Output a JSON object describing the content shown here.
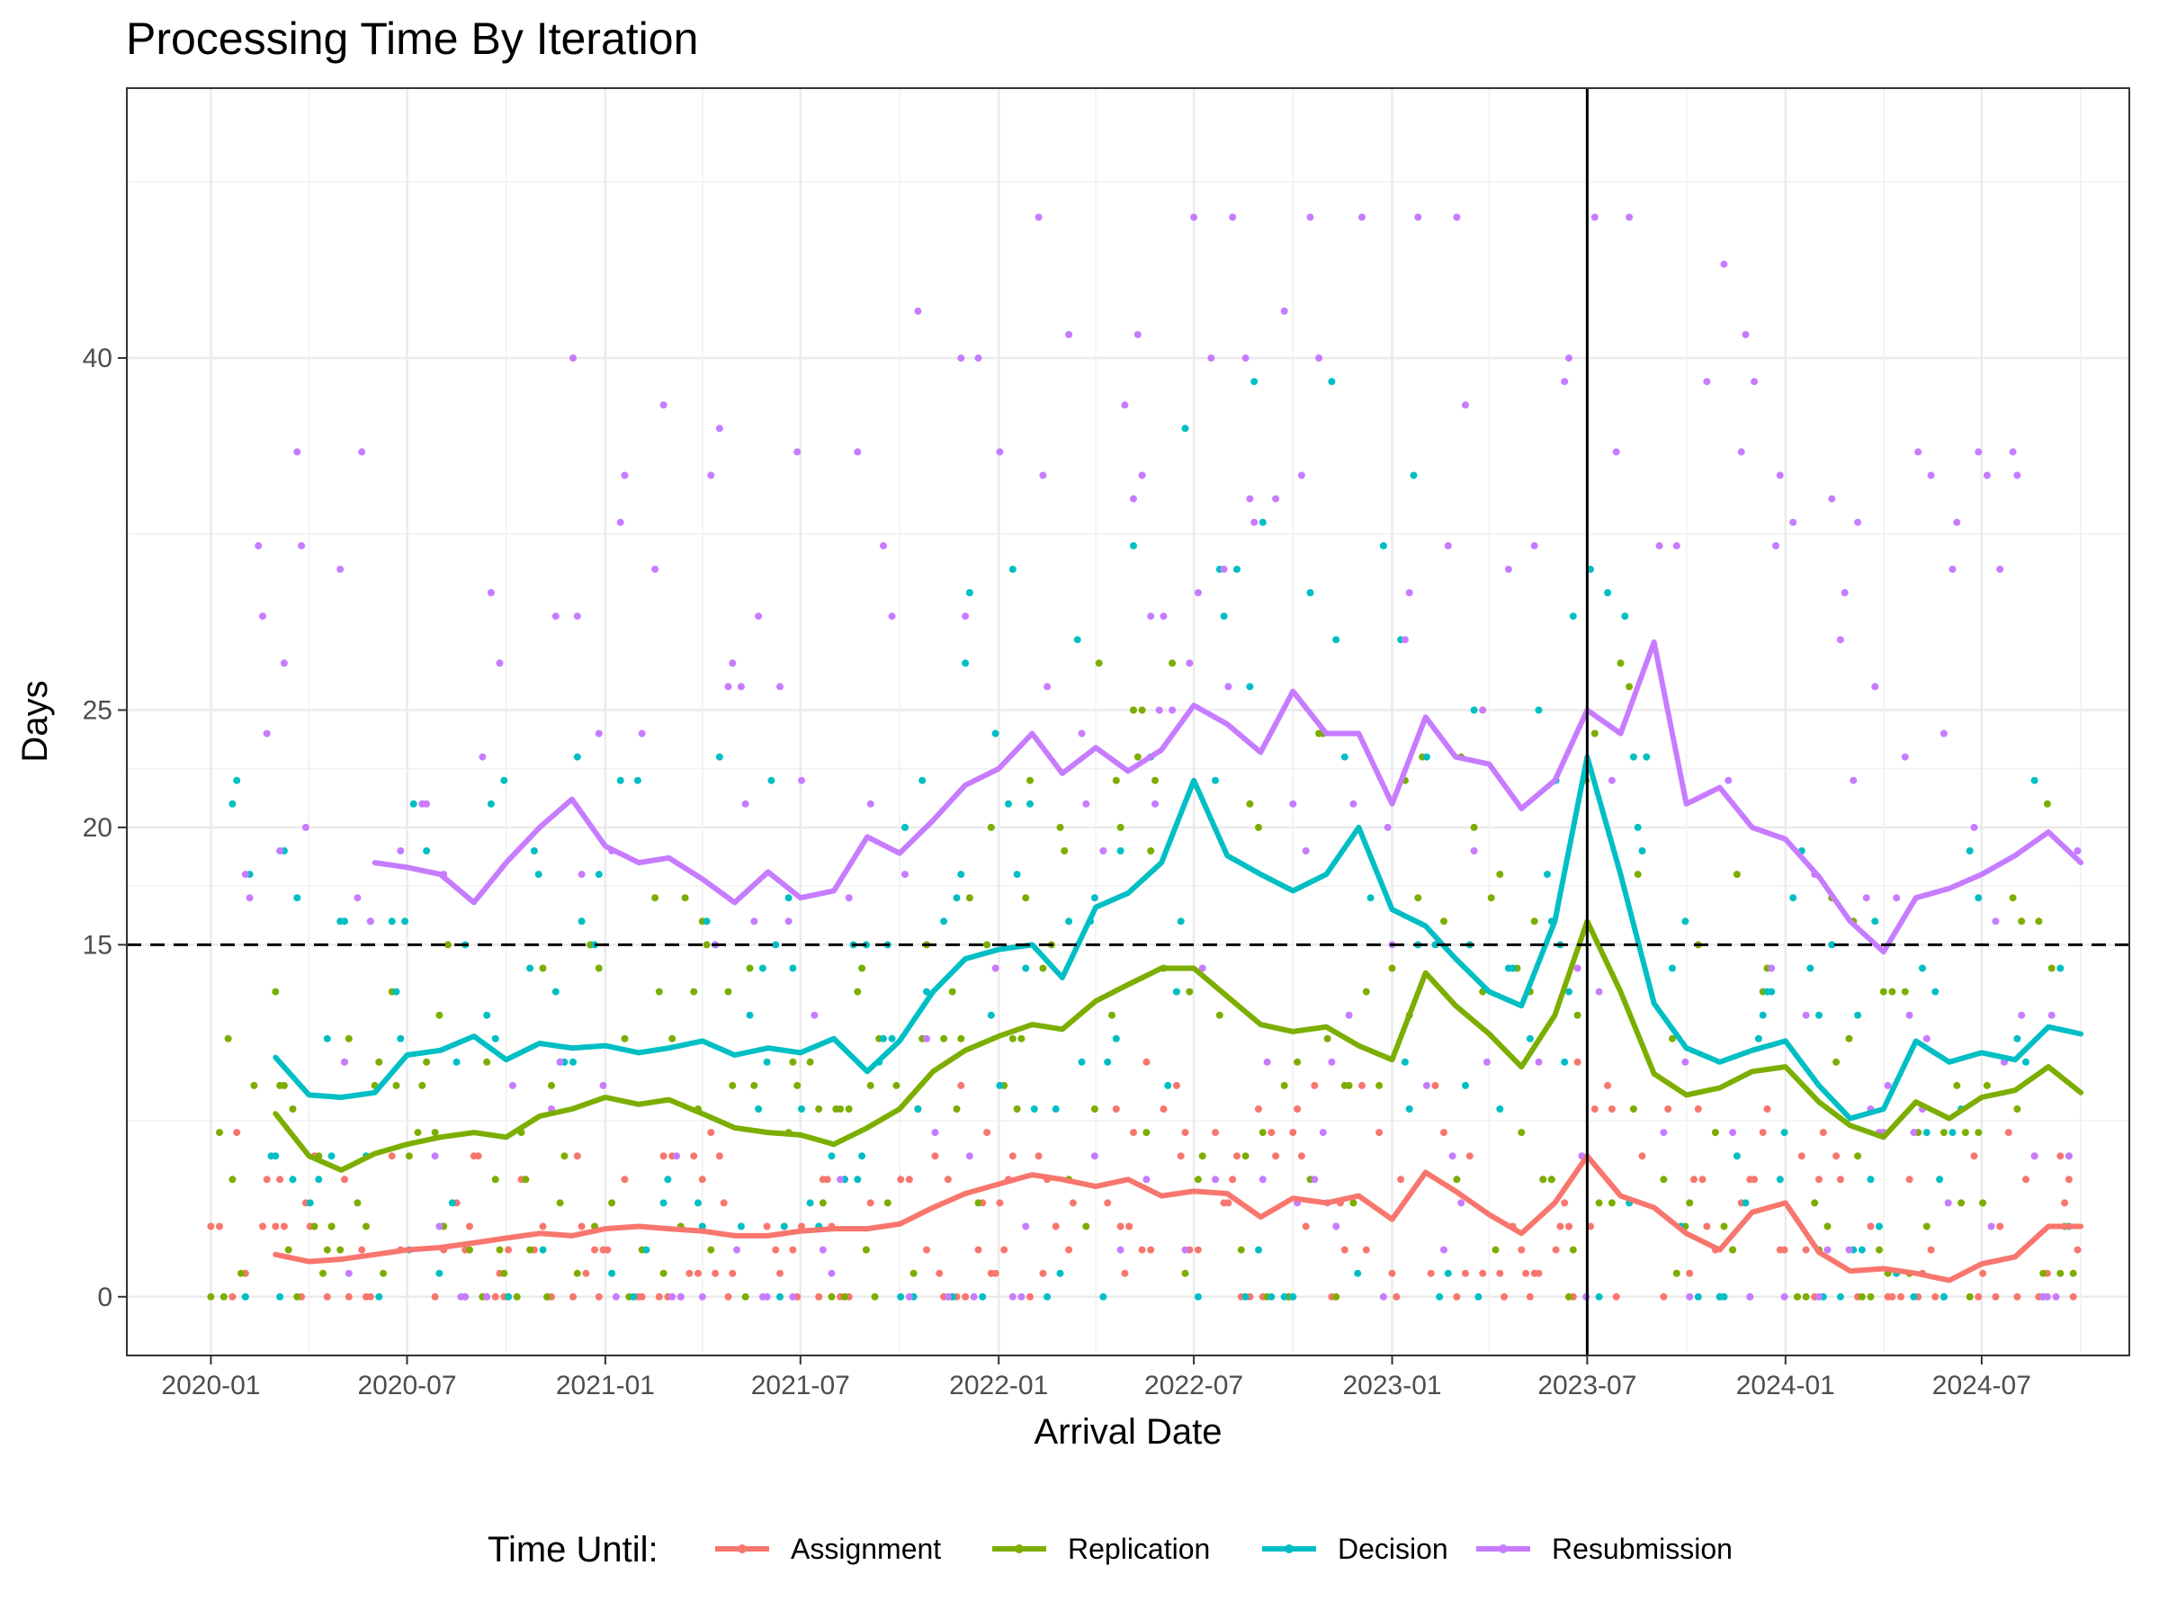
{
  "chart_data": {
    "type": "line",
    "title": "Processing Time By Iteration",
    "xlabel": "Arrival Date",
    "ylabel": "Days",
    "x_range": [
      "2019-10-15",
      "2024-11-15"
    ],
    "ylim": [
      -2.5,
      51.5
    ],
    "x_ticks": [
      "2020-01",
      "2020-07",
      "2021-01",
      "2021-07",
      "2022-01",
      "2022-07",
      "2023-01",
      "2023-07",
      "2024-01",
      "2024-07"
    ],
    "y_ticks": [
      0,
      15,
      20,
      25,
      40
    ],
    "grid": true,
    "reference_lines": {
      "horizontal": {
        "y": 15,
        "style": "dashed"
      },
      "vertical": {
        "x": "2023-07",
        "style": "solid"
      }
    },
    "legend": {
      "title": "Time Until:",
      "position": "bottom"
    },
    "series": [
      {
        "name": "Assignment",
        "color": "#F8766D",
        "points": [
          [
            "2020-03-01",
            1.8
          ],
          [
            "2020-04-01",
            1.5
          ],
          [
            "2020-05-01",
            1.6
          ],
          [
            "2020-06-01",
            1.8
          ],
          [
            "2020-07-01",
            2.0
          ],
          [
            "2020-08-01",
            2.1
          ],
          [
            "2020-09-01",
            2.3
          ],
          [
            "2020-10-01",
            2.5
          ],
          [
            "2020-11-01",
            2.7
          ],
          [
            "2020-12-01",
            2.6
          ],
          [
            "2021-01-01",
            2.9
          ],
          [
            "2021-02-01",
            3.0
          ],
          [
            "2021-03-01",
            2.9
          ],
          [
            "2021-04-01",
            2.8
          ],
          [
            "2021-05-01",
            2.6
          ],
          [
            "2021-06-01",
            2.6
          ],
          [
            "2021-07-01",
            2.8
          ],
          [
            "2021-08-01",
            2.9
          ],
          [
            "2021-09-01",
            2.9
          ],
          [
            "2021-10-01",
            3.1
          ],
          [
            "2021-11-01",
            3.8
          ],
          [
            "2021-12-01",
            4.4
          ],
          [
            "2022-01-01",
            4.8
          ],
          [
            "2022-02-01",
            5.2
          ],
          [
            "2022-03-01",
            5.0
          ],
          [
            "2022-04-01",
            4.7
          ],
          [
            "2022-05-01",
            5.0
          ],
          [
            "2022-06-01",
            4.3
          ],
          [
            "2022-07-01",
            4.5
          ],
          [
            "2022-08-01",
            4.4
          ],
          [
            "2022-09-01",
            3.4
          ],
          [
            "2022-10-01",
            4.2
          ],
          [
            "2022-11-01",
            4.0
          ],
          [
            "2022-12-01",
            4.3
          ],
          [
            "2023-01-01",
            3.3
          ],
          [
            "2023-02-01",
            5.3
          ],
          [
            "2023-03-01",
            4.5
          ],
          [
            "2023-04-01",
            3.5
          ],
          [
            "2023-05-01",
            2.7
          ],
          [
            "2023-06-01",
            4.0
          ],
          [
            "2023-07-01",
            6.0
          ],
          [
            "2023-08-01",
            4.3
          ],
          [
            "2023-09-01",
            3.8
          ],
          [
            "2023-10-01",
            2.7
          ],
          [
            "2023-11-01",
            2.0
          ],
          [
            "2023-12-01",
            3.6
          ],
          [
            "2024-01-01",
            4.0
          ],
          [
            "2024-02-01",
            1.9
          ],
          [
            "2024-03-01",
            1.1
          ],
          [
            "2024-04-01",
            1.2
          ],
          [
            "2024-05-01",
            1.0
          ],
          [
            "2024-06-01",
            0.7
          ],
          [
            "2024-07-01",
            1.4
          ],
          [
            "2024-08-01",
            1.7
          ],
          [
            "2024-09-01",
            3.0
          ],
          [
            "2024-10-01",
            3.0
          ]
        ]
      },
      {
        "name": "Replication",
        "color": "#7CAE00",
        "points": [
          [
            "2020-03-01",
            7.8
          ],
          [
            "2020-04-01",
            6.0
          ],
          [
            "2020-05-01",
            5.4
          ],
          [
            "2020-06-01",
            6.1
          ],
          [
            "2020-07-01",
            6.5
          ],
          [
            "2020-08-01",
            6.8
          ],
          [
            "2020-09-01",
            7.0
          ],
          [
            "2020-10-01",
            6.8
          ],
          [
            "2020-11-01",
            7.7
          ],
          [
            "2020-12-01",
            8.0
          ],
          [
            "2021-01-01",
            8.5
          ],
          [
            "2021-02-01",
            8.2
          ],
          [
            "2021-03-01",
            8.4
          ],
          [
            "2021-04-01",
            7.8
          ],
          [
            "2021-05-01",
            7.2
          ],
          [
            "2021-06-01",
            7.0
          ],
          [
            "2021-07-01",
            6.9
          ],
          [
            "2021-08-01",
            6.5
          ],
          [
            "2021-09-01",
            7.2
          ],
          [
            "2021-10-01",
            8.0
          ],
          [
            "2021-11-01",
            9.6
          ],
          [
            "2021-12-01",
            10.5
          ],
          [
            "2022-01-01",
            11.1
          ],
          [
            "2022-02-01",
            11.6
          ],
          [
            "2022-03-01",
            11.4
          ],
          [
            "2022-04-01",
            12.6
          ],
          [
            "2022-05-01",
            13.3
          ],
          [
            "2022-06-01",
            14.0
          ],
          [
            "2022-07-01",
            14.0
          ],
          [
            "2022-08-01",
            12.8
          ],
          [
            "2022-09-01",
            11.6
          ],
          [
            "2022-10-01",
            11.3
          ],
          [
            "2022-11-01",
            11.5
          ],
          [
            "2022-12-01",
            10.7
          ],
          [
            "2023-01-01",
            10.1
          ],
          [
            "2023-02-01",
            13.8
          ],
          [
            "2023-03-01",
            12.4
          ],
          [
            "2023-04-01",
            11.2
          ],
          [
            "2023-05-01",
            9.8
          ],
          [
            "2023-06-01",
            12.0
          ],
          [
            "2023-07-01",
            16.0
          ],
          [
            "2023-08-01",
            13.0
          ],
          [
            "2023-09-01",
            9.5
          ],
          [
            "2023-10-01",
            8.6
          ],
          [
            "2023-11-01",
            8.9
          ],
          [
            "2023-12-01",
            9.6
          ],
          [
            "2024-01-01",
            9.8
          ],
          [
            "2024-02-01",
            8.3
          ],
          [
            "2024-03-01",
            7.3
          ],
          [
            "2024-04-01",
            6.8
          ],
          [
            "2024-05-01",
            8.3
          ],
          [
            "2024-06-01",
            7.6
          ],
          [
            "2024-07-01",
            8.5
          ],
          [
            "2024-08-01",
            8.8
          ],
          [
            "2024-09-01",
            9.8
          ],
          [
            "2024-10-01",
            8.7
          ]
        ]
      },
      {
        "name": "Decision",
        "color": "#00BFC4",
        "points": [
          [
            "2020-03-01",
            10.2
          ],
          [
            "2020-04-01",
            8.6
          ],
          [
            "2020-05-01",
            8.5
          ],
          [
            "2020-06-01",
            8.7
          ],
          [
            "2020-07-01",
            10.3
          ],
          [
            "2020-08-01",
            10.5
          ],
          [
            "2020-09-01",
            11.1
          ],
          [
            "2020-10-01",
            10.1
          ],
          [
            "2020-11-01",
            10.8
          ],
          [
            "2020-12-01",
            10.6
          ],
          [
            "2021-01-01",
            10.7
          ],
          [
            "2021-02-01",
            10.4
          ],
          [
            "2021-03-01",
            10.6
          ],
          [
            "2021-04-01",
            10.9
          ],
          [
            "2021-05-01",
            10.3
          ],
          [
            "2021-06-01",
            10.6
          ],
          [
            "2021-07-01",
            10.4
          ],
          [
            "2021-08-01",
            11.0
          ],
          [
            "2021-09-01",
            9.6
          ],
          [
            "2021-10-01",
            10.9
          ],
          [
            "2021-11-01",
            13.0
          ],
          [
            "2021-12-01",
            14.4
          ],
          [
            "2022-01-01",
            14.8
          ],
          [
            "2022-02-01",
            15.0
          ],
          [
            "2022-03-01",
            13.6
          ],
          [
            "2022-04-01",
            16.6
          ],
          [
            "2022-05-01",
            17.2
          ],
          [
            "2022-06-01",
            18.5
          ],
          [
            "2022-07-01",
            22.0
          ],
          [
            "2022-08-01",
            18.8
          ],
          [
            "2022-09-01",
            18.0
          ],
          [
            "2022-10-01",
            17.3
          ],
          [
            "2022-11-01",
            18.0
          ],
          [
            "2022-12-01",
            20.0
          ],
          [
            "2023-01-01",
            16.5
          ],
          [
            "2023-02-01",
            15.8
          ],
          [
            "2023-03-01",
            14.4
          ],
          [
            "2023-04-01",
            13.0
          ],
          [
            "2023-05-01",
            12.4
          ],
          [
            "2023-06-01",
            16.0
          ],
          [
            "2023-07-01",
            23.0
          ],
          [
            "2023-08-01",
            18.0
          ],
          [
            "2023-09-01",
            12.5
          ],
          [
            "2023-10-01",
            10.6
          ],
          [
            "2023-11-01",
            10.0
          ],
          [
            "2023-12-01",
            10.5
          ],
          [
            "2024-01-01",
            10.9
          ],
          [
            "2024-02-01",
            9.0
          ],
          [
            "2024-03-01",
            7.6
          ],
          [
            "2024-04-01",
            8.0
          ],
          [
            "2024-05-01",
            10.9
          ],
          [
            "2024-06-01",
            10.0
          ],
          [
            "2024-07-01",
            10.4
          ],
          [
            "2024-08-01",
            10.1
          ],
          [
            "2024-09-01",
            11.5
          ],
          [
            "2024-10-01",
            11.2
          ]
        ]
      },
      {
        "name": "Resubmission",
        "color": "#C77CFF",
        "points": [
          [
            "2020-06-01",
            18.5
          ],
          [
            "2020-07-01",
            18.3
          ],
          [
            "2020-08-01",
            18.0
          ],
          [
            "2020-09-01",
            16.8
          ],
          [
            "2020-10-01",
            18.5
          ],
          [
            "2020-11-01",
            20.0
          ],
          [
            "2020-12-01",
            21.2
          ],
          [
            "2021-01-01",
            19.2
          ],
          [
            "2021-02-01",
            18.5
          ],
          [
            "2021-03-01",
            18.7
          ],
          [
            "2021-04-01",
            17.8
          ],
          [
            "2021-05-01",
            16.8
          ],
          [
            "2021-06-01",
            18.1
          ],
          [
            "2021-07-01",
            17.0
          ],
          [
            "2021-08-01",
            17.3
          ],
          [
            "2021-09-01",
            19.6
          ],
          [
            "2021-10-01",
            18.9
          ],
          [
            "2021-11-01",
            20.3
          ],
          [
            "2021-12-01",
            21.8
          ],
          [
            "2022-01-01",
            22.5
          ],
          [
            "2022-02-01",
            24.0
          ],
          [
            "2022-03-01",
            22.3
          ],
          [
            "2022-04-01",
            23.4
          ],
          [
            "2022-05-01",
            22.4
          ],
          [
            "2022-06-01",
            23.3
          ],
          [
            "2022-07-01",
            25.2
          ],
          [
            "2022-08-01",
            24.4
          ],
          [
            "2022-09-01",
            23.2
          ],
          [
            "2022-10-01",
            25.8
          ],
          [
            "2022-11-01",
            24.0
          ],
          [
            "2022-12-01",
            24.0
          ],
          [
            "2023-01-01",
            21.0
          ],
          [
            "2023-02-01",
            24.7
          ],
          [
            "2023-03-01",
            23.0
          ],
          [
            "2023-04-01",
            22.7
          ],
          [
            "2023-05-01",
            20.8
          ],
          [
            "2023-06-01",
            22.0
          ],
          [
            "2023-07-01",
            25.0
          ],
          [
            "2023-08-01",
            24.0
          ],
          [
            "2023-09-01",
            27.9
          ],
          [
            "2023-10-01",
            21.0
          ],
          [
            "2023-11-01",
            21.7
          ],
          [
            "2023-12-01",
            20.0
          ],
          [
            "2024-01-01",
            19.5
          ],
          [
            "2024-02-01",
            17.9
          ],
          [
            "2024-03-01",
            16.0
          ],
          [
            "2024-04-01",
            14.7
          ],
          [
            "2024-05-01",
            17.0
          ],
          [
            "2024-06-01",
            17.4
          ],
          [
            "2024-07-01",
            18.0
          ],
          [
            "2024-08-01",
            18.8
          ],
          [
            "2024-09-01",
            19.8
          ],
          [
            "2024-10-01",
            18.5
          ]
        ]
      }
    ]
  }
}
